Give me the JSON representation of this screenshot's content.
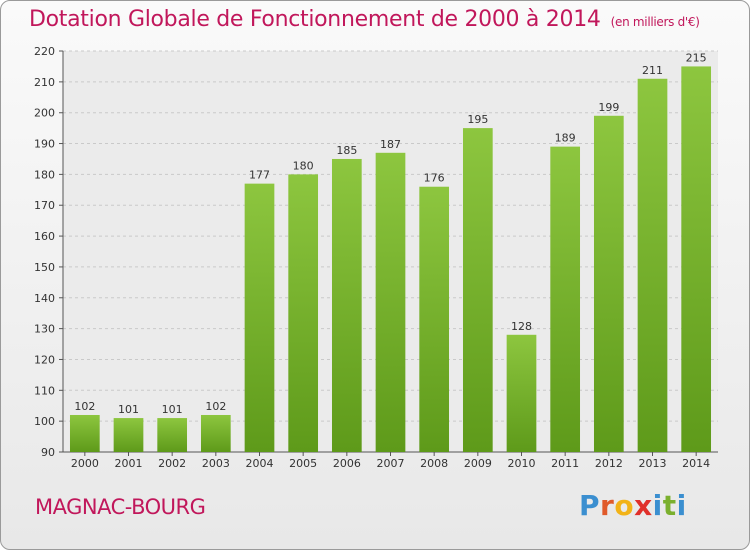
{
  "chart_data": {
    "type": "bar",
    "title": "Dotation Globale de Fonctionnement de 2000 à 2014",
    "unit_note": "(en milliers d'€)",
    "categories": [
      "2000",
      "2001",
      "2002",
      "2003",
      "2004",
      "2005",
      "2006",
      "2007",
      "2008",
      "2009",
      "2010",
      "2011",
      "2012",
      "2013",
      "2014"
    ],
    "values": [
      102,
      101,
      101,
      102,
      177,
      180,
      185,
      187,
      176,
      195,
      128,
      189,
      199,
      211,
      215
    ],
    "ylim": [
      90,
      220
    ],
    "yticks": [
      90,
      100,
      110,
      120,
      130,
      140,
      150,
      160,
      170,
      180,
      190,
      200,
      210,
      220
    ],
    "grid": true,
    "bar_color_top": "#8dc63f",
    "bar_color_bottom": "#5e9a1a"
  },
  "commune": "MAGNAC-BOURG",
  "logo": {
    "letters": [
      "P",
      "r",
      "o",
      "x",
      "i",
      "t",
      "i"
    ],
    "colors": [
      "#3b8fd0",
      "#e05a2a",
      "#f2b318",
      "#e0302a",
      "#3b8fd0",
      "#7bb02e",
      "#3b8fd0"
    ]
  }
}
